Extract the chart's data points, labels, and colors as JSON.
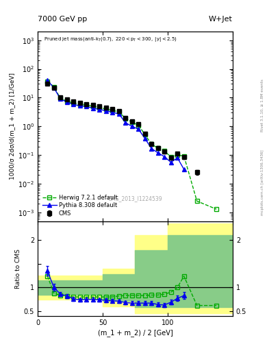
{
  "title_top": "7000 GeV pp",
  "title_right": "W+Jet",
  "plot_title": "Pruned jet mass",
  "plot_title_small": "(anti-k$_{T}$(0.7), 220<p$_{T}$<300, |y|<2.5)",
  "watermark": "CMS_2013_I1224539",
  "ylabel_main": "1000/σ 2dσ/d(m_1 + m_2) [1/GeV]",
  "ylabel_ratio": "Ratio to CMS",
  "xlabel": "(m_1 + m_2) / 2 [GeV]",
  "xlim": [
    0,
    150
  ],
  "ylim_main": [
    0.0005,
    2000
  ],
  "ylim_ratio": [
    0.4,
    2.4
  ],
  "cms_x": [
    7.5,
    12.5,
    17.5,
    22.5,
    27.5,
    32.5,
    37.5,
    42.5,
    47.5,
    52.5,
    57.5,
    62.5,
    67.5,
    72.5,
    77.5,
    82.5,
    87.5,
    92.5,
    97.5,
    102.5,
    107.5,
    112.5,
    122.5
  ],
  "cms_y": [
    30,
    22,
    10.5,
    8.5,
    7.2,
    6.5,
    6.0,
    5.5,
    5.0,
    4.5,
    4.0,
    3.5,
    2.0,
    1.5,
    1.2,
    0.55,
    0.25,
    0.18,
    0.13,
    0.08,
    0.11,
    0.085,
    0.025
  ],
  "cms_yerr": [
    2,
    1.5,
    0.8,
    0.6,
    0.5,
    0.45,
    0.4,
    0.35,
    0.3,
    0.28,
    0.25,
    0.22,
    0.15,
    0.12,
    0.1,
    0.06,
    0.03,
    0.025,
    0.018,
    0.012,
    0.015,
    0.012,
    0.005
  ],
  "herwig_x": [
    7.5,
    12.5,
    17.5,
    22.5,
    27.5,
    32.5,
    37.5,
    42.5,
    47.5,
    52.5,
    57.5,
    62.5,
    67.5,
    72.5,
    77.5,
    82.5,
    87.5,
    92.5,
    97.5,
    102.5,
    107.5,
    112.5,
    122.5,
    137.5
  ],
  "herwig_y": [
    37,
    24,
    9.5,
    7.5,
    6.5,
    6.0,
    5.5,
    5.0,
    4.5,
    4.0,
    3.6,
    3.2,
    1.9,
    1.4,
    1.1,
    0.52,
    0.24,
    0.175,
    0.14,
    0.085,
    0.1,
    0.093,
    0.0025,
    0.0013
  ],
  "pythia_x": [
    7.5,
    12.5,
    17.5,
    22.5,
    27.5,
    32.5,
    37.5,
    42.5,
    47.5,
    52.5,
    57.5,
    62.5,
    67.5,
    72.5,
    77.5,
    82.5,
    87.5,
    92.5,
    97.5,
    102.5,
    107.5,
    112.5
  ],
  "pythia_y": [
    40,
    22,
    9.0,
    7.0,
    5.8,
    5.2,
    4.9,
    4.3,
    3.9,
    3.5,
    3.1,
    2.7,
    1.35,
    1.0,
    0.8,
    0.38,
    0.17,
    0.12,
    0.088,
    0.056,
    0.08,
    0.032
  ],
  "ratio_herwig_x": [
    7.5,
    12.5,
    17.5,
    22.5,
    27.5,
    32.5,
    37.5,
    42.5,
    47.5,
    52.5,
    57.5,
    62.5,
    67.5,
    72.5,
    77.5,
    82.5,
    87.5,
    92.5,
    97.5,
    102.5,
    107.5,
    112.5,
    122.5,
    137.5
  ],
  "ratio_herwig_y": [
    1.24,
    0.88,
    0.83,
    0.82,
    0.8,
    0.8,
    0.8,
    0.8,
    0.8,
    0.8,
    0.8,
    0.82,
    0.83,
    0.83,
    0.83,
    0.83,
    0.84,
    0.84,
    0.86,
    0.9,
    1.0,
    1.24,
    0.62,
    0.62
  ],
  "ratio_pythia_x": [
    7.5,
    12.5,
    17.5,
    22.5,
    27.5,
    32.5,
    37.5,
    42.5,
    47.5,
    52.5,
    57.5,
    62.5,
    67.5,
    72.5,
    77.5,
    82.5,
    87.5,
    92.5,
    97.5,
    102.5,
    107.5,
    112.5
  ],
  "ratio_pythia_y": [
    1.35,
    1.0,
    0.86,
    0.82,
    0.76,
    0.74,
    0.75,
    0.75,
    0.74,
    0.73,
    0.72,
    0.71,
    0.68,
    0.67,
    0.67,
    0.67,
    0.67,
    0.64,
    0.63,
    0.69,
    0.77,
    0.83
  ],
  "ratio_pythia_yerr": [
    0.1,
    0.07,
    0.05,
    0.04,
    0.04,
    0.04,
    0.04,
    0.04,
    0.04,
    0.04,
    0.04,
    0.04,
    0.04,
    0.04,
    0.04,
    0.04,
    0.04,
    0.04,
    0.04,
    0.05,
    0.06,
    0.07
  ],
  "band_yellow_edges": [
    0,
    50,
    50,
    75,
    75,
    100,
    100,
    150
  ],
  "band_yellow_lo": [
    0.75,
    0.75,
    0.6,
    0.6,
    0.45,
    0.45,
    0.45,
    0.45
  ],
  "band_yellow_hi": [
    1.25,
    1.25,
    1.4,
    1.4,
    2.1,
    2.1,
    2.35,
    2.35
  ],
  "band_green_edges": [
    0,
    50,
    50,
    75,
    75,
    100,
    100,
    150
  ],
  "band_green_lo": [
    0.85,
    0.85,
    0.72,
    0.72,
    0.58,
    0.58,
    0.58,
    0.58
  ],
  "band_green_hi": [
    1.15,
    1.15,
    1.28,
    1.28,
    1.78,
    1.78,
    2.1,
    2.1
  ],
  "color_cms": "#000000",
  "color_herwig": "#00aa00",
  "color_pythia": "#0000ee",
  "color_yellow": "#ffff88",
  "color_green": "#88cc88",
  "right_label1": "Rivet 3.1.10, ≥ 1.8M events",
  "right_label2": "mcplots.cern.ch [arXiv:1306.3436]"
}
